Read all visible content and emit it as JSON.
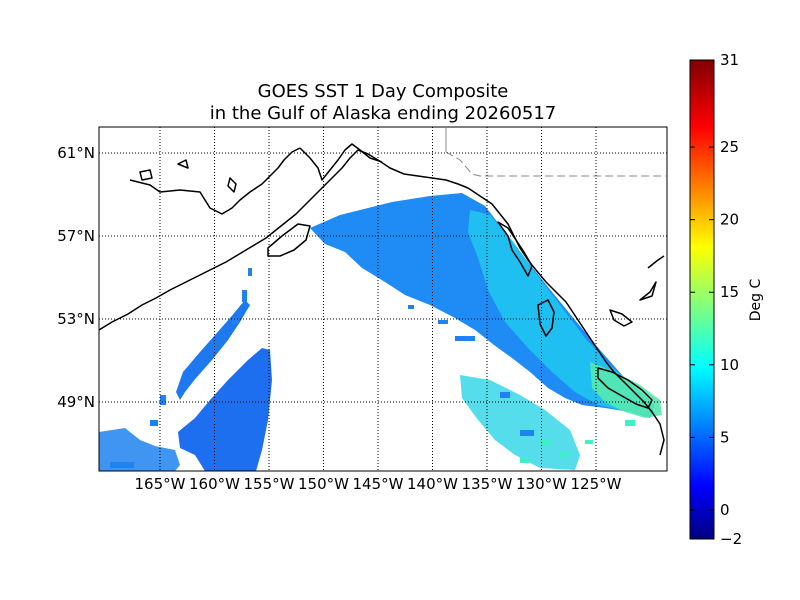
{
  "title": {
    "line1": "GOES SST 1 Day Composite",
    "line2": "in the Gulf of Alaska ending 20260517"
  },
  "map": {
    "lon_range": [
      -172,
      -121
    ],
    "lat_range": [
      46.5,
      62.0
    ],
    "lat_ticks": [
      {
        "value": 61,
        "label": "61°N"
      },
      {
        "value": 57,
        "label": "57°N"
      },
      {
        "value": 53,
        "label": "53°N"
      },
      {
        "value": 49,
        "label": "49°N"
      }
    ],
    "lon_ticks": [
      {
        "value": -165,
        "label": "165°W"
      },
      {
        "value": -160,
        "label": "160°W"
      },
      {
        "value": -155,
        "label": "155°W"
      },
      {
        "value": -150,
        "label": "150°W"
      },
      {
        "value": -145,
        "label": "145°W"
      },
      {
        "value": -140,
        "label": "140°W"
      },
      {
        "value": -135,
        "label": "135°W"
      },
      {
        "value": -130,
        "label": "130°W"
      },
      {
        "value": -125,
        "label": "125°W"
      }
    ],
    "gridlines": "dotted"
  },
  "colorbar": {
    "label": "Deg C",
    "min": -2,
    "max": 31,
    "ticks": [
      {
        "value": 31,
        "label": "31"
      },
      {
        "value": 25,
        "label": "25"
      },
      {
        "value": 20,
        "label": "20"
      },
      {
        "value": 15,
        "label": "15"
      },
      {
        "value": 10,
        "label": "10"
      },
      {
        "value": 5,
        "label": "5"
      },
      {
        "value": 0,
        "label": "0"
      },
      {
        "value": -2,
        "label": "−2"
      }
    ],
    "colormap": "jet"
  },
  "colors": {
    "sst_cold": "#1e6ef0",
    "sst_mid": "#00b4ff",
    "sst_warm": "#3cf0c8",
    "sst_coastal": "#5cf08c",
    "land": "#ffffff",
    "coastline": "#000000",
    "border": "#888888"
  }
}
